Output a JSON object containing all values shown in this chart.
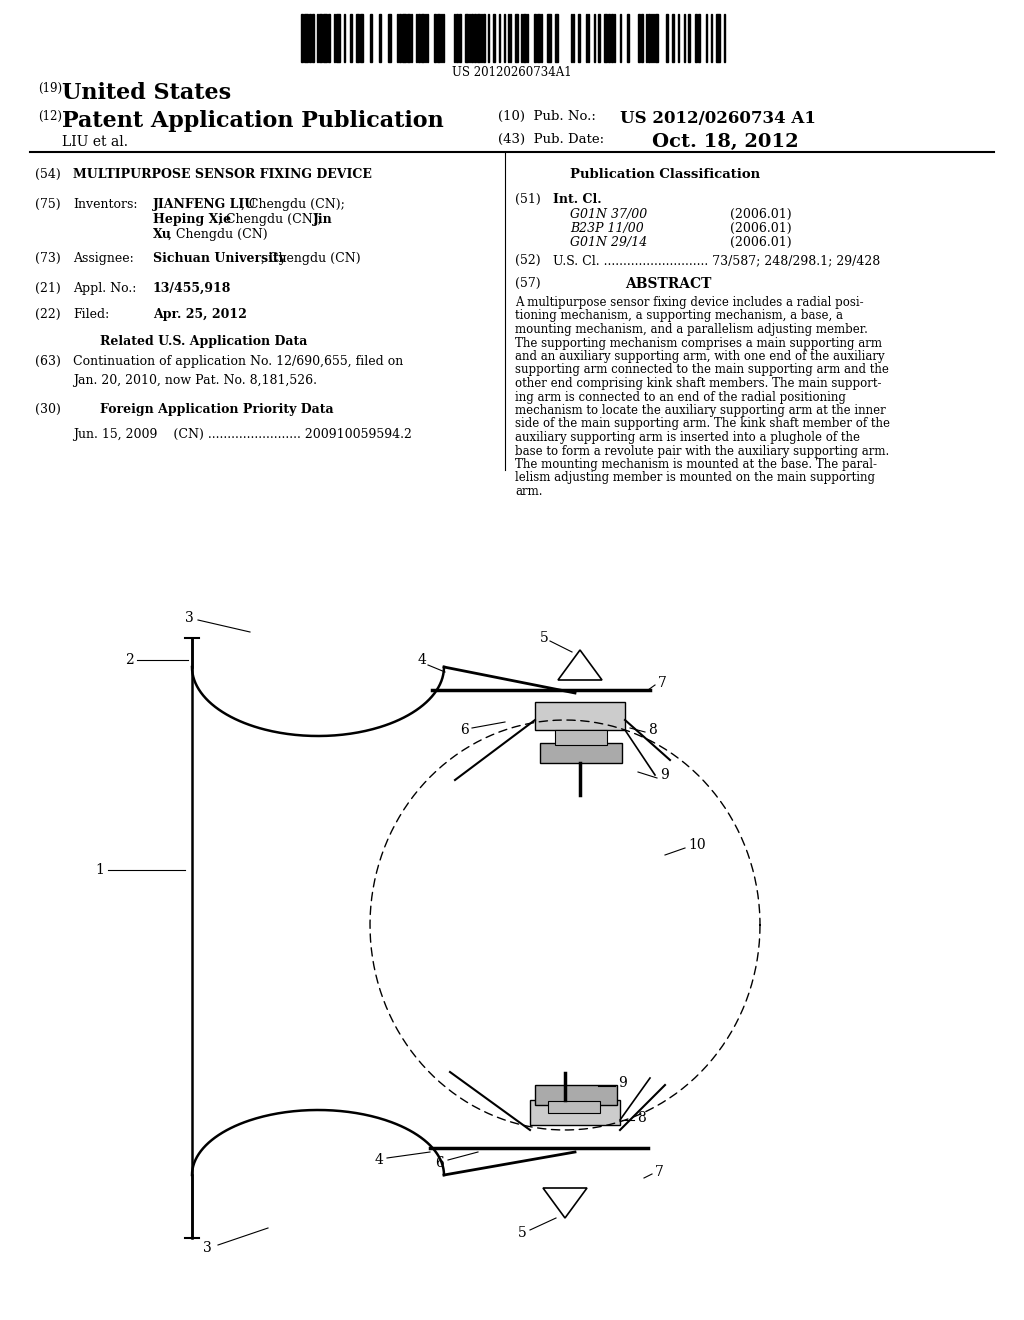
{
  "bg_color": "#ffffff",
  "barcode_text": "US 20120260734A1",
  "header_19": "(19)",
  "header_19_text": "United States",
  "header_12": "(12)",
  "header_12_text": "Patent Application Publication",
  "liu_et_al": "LIU et al.",
  "pub_no_label": "(10)  Pub. No.:",
  "pub_no": "US 2012/0260734 A1",
  "pub_date_label": "(43)  Pub. Date:",
  "pub_date": "Oct. 18, 2012",
  "field_54": "MULTIPURPOSE SENSOR FIXING DEVICE",
  "pub_class_title": "Publication Classification",
  "field_51_int_cl": "Int. Cl.",
  "class_1": "G01N 37/00",
  "class_1_year": "(2006.01)",
  "class_2": "B23P 11/00",
  "class_2_year": "(2006.01)",
  "class_3": "G01N 29/14",
  "class_3_year": "(2006.01)",
  "field_52_text": "U.S. Cl. ........................... 73/587; 248/298.1; 29/428",
  "field_57_abstract": "ABSTRACT",
  "abstract_lines": [
    "A multipurpose sensor fixing device includes a radial posi-",
    "tioning mechanism, a supporting mechanism, a base, a",
    "mounting mechanism, and a parallelism adjusting member.",
    "The supporting mechanism comprises a main supporting arm",
    "and an auxiliary supporting arm, with one end of the auxiliary",
    "supporting arm connected to the main supporting arm and the",
    "other end comprising kink shaft members. The main support-",
    "ing arm is connected to an end of the radial positioning",
    "mechanism to locate the auxiliary supporting arm at the inner",
    "side of the main supporting arm. The kink shaft member of the",
    "auxiliary supporting arm is inserted into a plughole of the",
    "base to form a revolute pair with the auxiliary supporting arm.",
    "The mounting mechanism is mounted at the base. The paral-",
    "lelism adjusting member is mounted on the main supporting",
    "arm."
  ],
  "inventors_label": "JIANFENG LIU",
  "inventors_rest1": ", Chengdu (CN);",
  "inventors_bold2": "Heping Xie",
  "inventors_rest2": ", Chengdu (CN); ",
  "inventors_bold3": "Jin",
  "inventors_line2end": "",
  "inventors_bold4": "Xu",
  "inventors_rest4": ", Chengdu (CN)",
  "assignee_bold": "Sichuan University",
  "assignee_rest": ", Chengdu (CN)",
  "appl_no": "13/455,918",
  "filed": "Apr. 25, 2012",
  "related_title": "Related U.S. Application Data",
  "continuation": "Continuation of application No. 12/690,655, filed on\nJan. 20, 2010, now Pat. No. 8,181,526.",
  "foreign_title": "Foreign Application Priority Data",
  "foreign_data": "Jun. 15, 2009    (CN) ........................ 200910059594.2"
}
